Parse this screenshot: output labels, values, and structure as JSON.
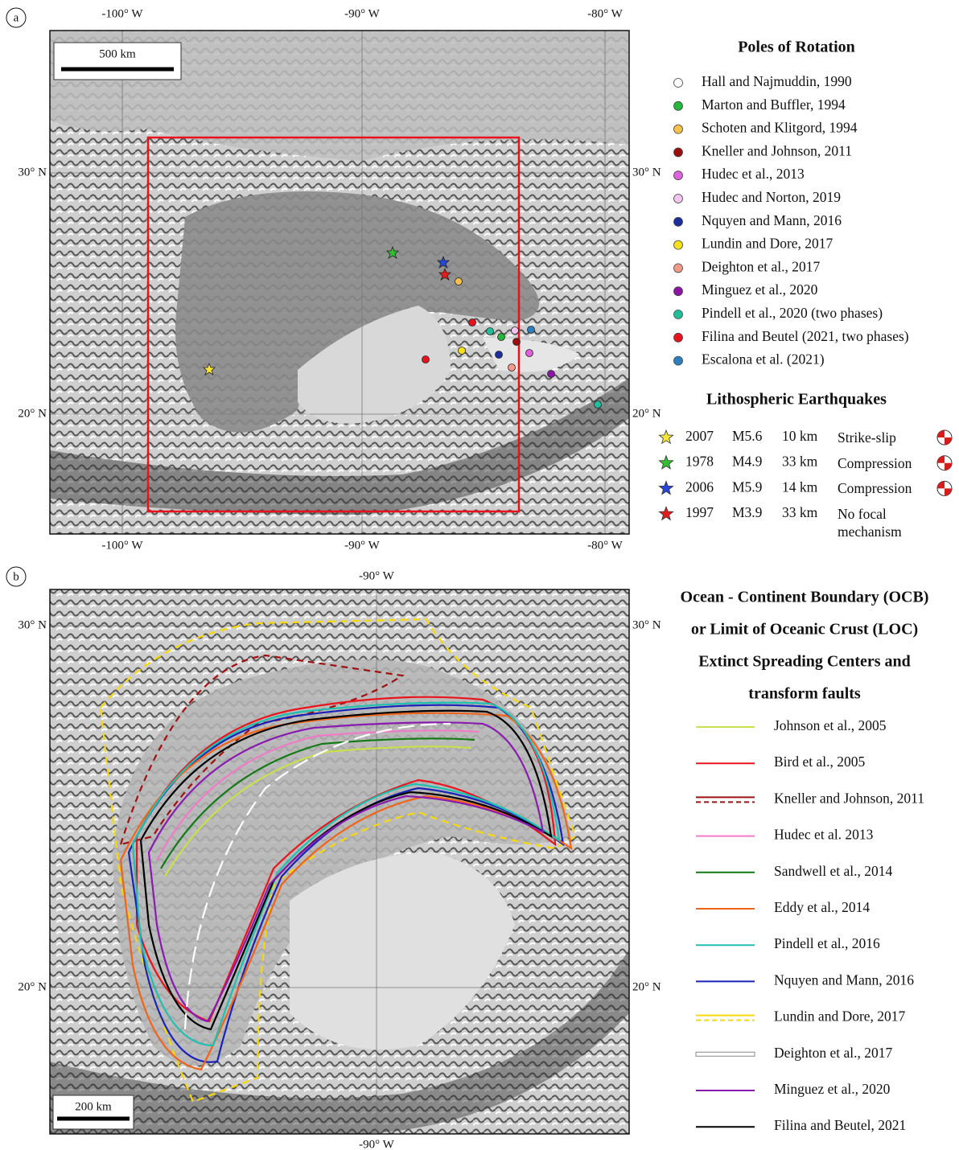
{
  "panel_a": {
    "label": "a",
    "lon_ticks": [
      "-100° W",
      "-90° W",
      "-80° W"
    ],
    "lat_ticks": [
      "30° N",
      "20° N"
    ],
    "scale_bar": "500 km",
    "poles_legend": {
      "title": "Poles of Rotation",
      "items": [
        {
          "name": "Hall and Najmuddin, 1990",
          "color": "#ffffff"
        },
        {
          "name": "Marton and Buffler, 1994",
          "color": "#22b83a"
        },
        {
          "name": "Schoten and Klitgord, 1994",
          "color": "#f7c04a"
        },
        {
          "name": "Kneller and Johnson, 2011",
          "color": "#9b0e0e"
        },
        {
          "name": "Hudec et al., 2013",
          "color": "#e060e0"
        },
        {
          "name": "Hudec and Norton, 2019",
          "color": "#f2c4ee"
        },
        {
          "name": "Nquyen and Mann, 2016",
          "color": "#1a2ea0"
        },
        {
          "name": "Lundin and Dore, 2017",
          "color": "#f7e219"
        },
        {
          "name": "Deighton et al., 2017",
          "color": "#f49a88"
        },
        {
          "name": "Minguez et al., 2020",
          "color": "#8e14a8"
        },
        {
          "name": "Pindell et al., 2020 (two phases)",
          "color": "#1fbf9c"
        },
        {
          "name": "Filina and Beutel (2021, two phases)",
          "color": "#e8121c"
        },
        {
          "name": "Escalona et al. (2021)",
          "color": "#2e7fc0"
        }
      ]
    },
    "earthquakes_legend": {
      "title": "Lithospheric Earthquakes",
      "rows": [
        {
          "year": "2007",
          "magnitude": "M5.6",
          "depth": "10 km",
          "type": "Strike-slip",
          "color": "#f7e53a"
        },
        {
          "year": "1978",
          "magnitude": "M4.9",
          "depth": "33 km",
          "type": "Compression",
          "color": "#2fc12f"
        },
        {
          "year": "2006",
          "magnitude": "M5.9",
          "depth": "14 km",
          "type": "Compression",
          "color": "#2747d8"
        },
        {
          "year": "1997",
          "magnitude": "M3.9",
          "depth": "33 km",
          "type": "No focal mechanism",
          "color": "#e51c1c"
        }
      ]
    }
  },
  "panel_b": {
    "label": "b",
    "lon_ticks": [
      "-90° W"
    ],
    "lat_ticks": [
      "30° N",
      "20° N"
    ],
    "scale_bar": "200 km",
    "legend_headers": [
      "Ocean - Continent Boundary (OCB)",
      "or Limit of Oceanic Crust (LOC)",
      "Extinct Spreading Centers and",
      "transform faults"
    ],
    "legend_items": [
      {
        "name": "Johnson et al., 2005",
        "color": "#c8e04a",
        "style": "solid"
      },
      {
        "name": "Bird et al., 2005",
        "color": "#e8161c",
        "style": "solid"
      },
      {
        "name": "Kneller and Johnson, 2011",
        "color": "#a01010",
        "style": "double-dashed"
      },
      {
        "name": "Hudec et al. 2013",
        "color": "#f07ac8",
        "style": "solid"
      },
      {
        "name": "Sandwell et al., 2014",
        "color": "#127a12",
        "style": "solid"
      },
      {
        "name": "Eddy et al., 2014",
        "color": "#f0641a",
        "style": "solid"
      },
      {
        "name": "Pindell et al., 2016",
        "color": "#1ec0b0",
        "style": "solid"
      },
      {
        "name": "Nquyen and Mann, 2016",
        "color": "#1a22b8",
        "style": "solid"
      },
      {
        "name": "Lundin and Dore, 2017",
        "color": "#f7d80a",
        "style": "double-dashed"
      },
      {
        "name": "Deighton et al., 2017",
        "color": "#ffffff",
        "style": "outlined"
      },
      {
        "name": "Minguez et al., 2020",
        "color": "#8a1ab0",
        "style": "solid"
      },
      {
        "name": "Filina and Beutel,  2021",
        "color": "#000000",
        "style": "solid"
      }
    ]
  }
}
